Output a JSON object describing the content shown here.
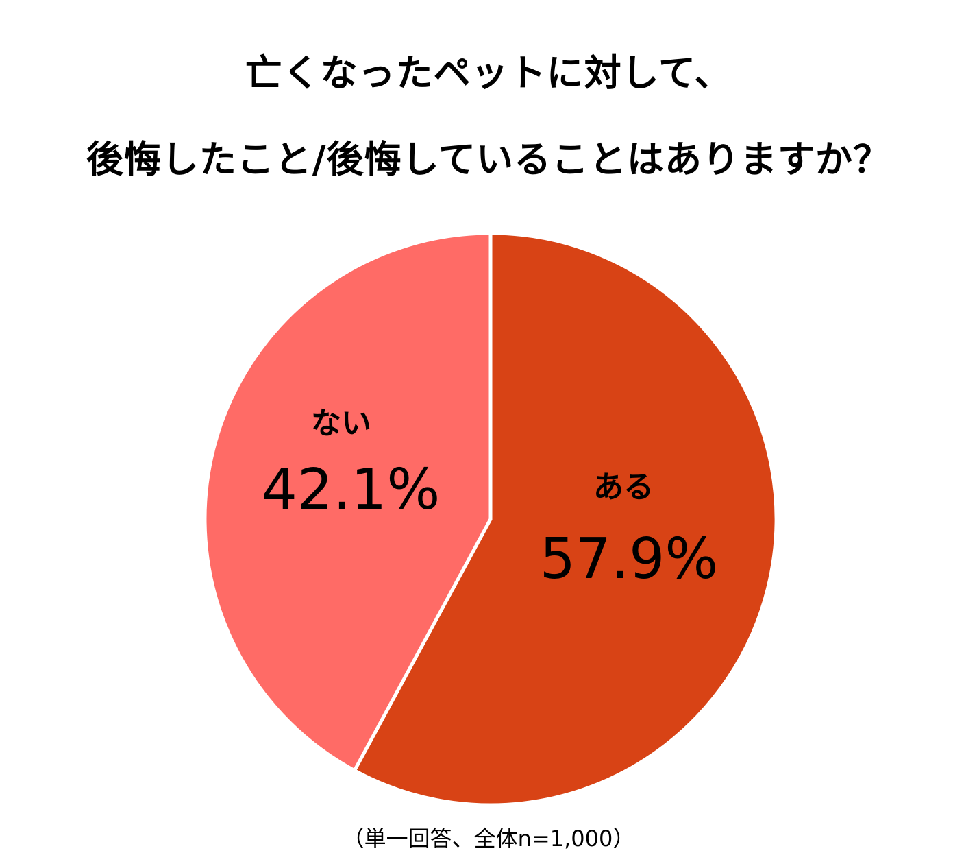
{
  "chart_data": {
    "type": "pie",
    "title": [
      "亡くなったペットに対して、",
      "後悔したこと/後悔していることはありますか？"
    ],
    "slices": [
      {
        "label": "ある",
        "value": 57.9,
        "value_label": "57.9%",
        "color": "#D84315"
      },
      {
        "label": "ない",
        "value": 42.1,
        "value_label": "42.1%",
        "color": "#FF6B66"
      }
    ],
    "start_angle": "top",
    "direction": "clockwise",
    "note": "（単一回答、全体n=1,000）"
  }
}
